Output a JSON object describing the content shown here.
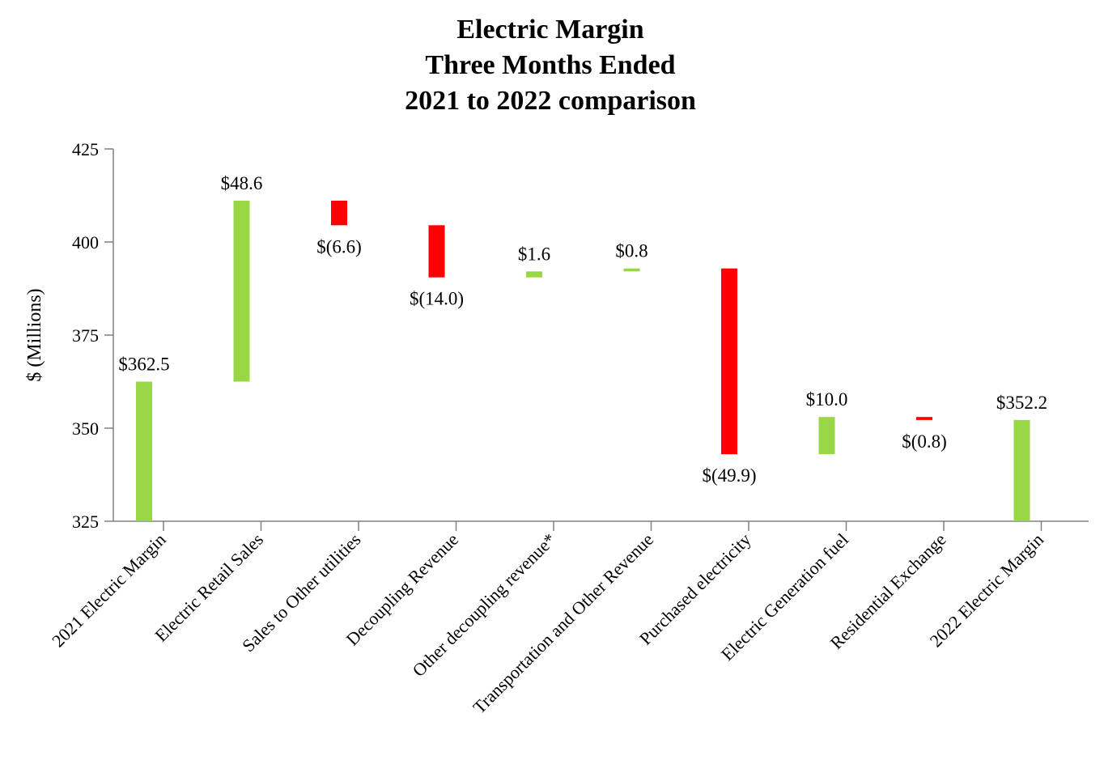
{
  "chart_data": {
    "type": "waterfall",
    "title": [
      "Electric Margin",
      "Three Months Ended",
      "2021 to 2022 comparison"
    ],
    "ylabel": "$ (Millions)",
    "xlabel": "",
    "ylim": [
      325,
      425
    ],
    "yticks": [
      325,
      350,
      375,
      400,
      425
    ],
    "grid": false,
    "colors": {
      "increase": "#99d844",
      "decrease": "#ff0000",
      "total": "#99d844"
    },
    "bars": [
      {
        "category": "2021 Electric Margin",
        "value": 362.5,
        "kind": "total",
        "label": "$362.5"
      },
      {
        "category": "Electric Retail Sales",
        "value": 48.6,
        "kind": "increase",
        "label": "$48.6"
      },
      {
        "category": "Sales to Other utilities",
        "value": -6.6,
        "kind": "decrease",
        "label": "$(6.6)"
      },
      {
        "category": "Decoupling Revenue",
        "value": -14.0,
        "kind": "decrease",
        "label": "$(14.0)"
      },
      {
        "category": "Other decoupling revenue*",
        "value": 1.6,
        "kind": "increase",
        "label": "$1.6"
      },
      {
        "category": "Transportation and Other Revenue",
        "value": 0.8,
        "kind": "increase",
        "label": "$0.8"
      },
      {
        "category": "Purchased electricity",
        "value": -49.9,
        "kind": "decrease",
        "label": "$(49.9)"
      },
      {
        "category": "Electric Generation fuel",
        "value": 10.0,
        "kind": "increase",
        "label": "$10.0"
      },
      {
        "category": "Residential Exchange",
        "value": -0.8,
        "kind": "decrease",
        "label": "$(0.8)"
      },
      {
        "category": "2022 Electric Margin",
        "value": 352.2,
        "kind": "total",
        "label": "$352.2"
      }
    ]
  }
}
